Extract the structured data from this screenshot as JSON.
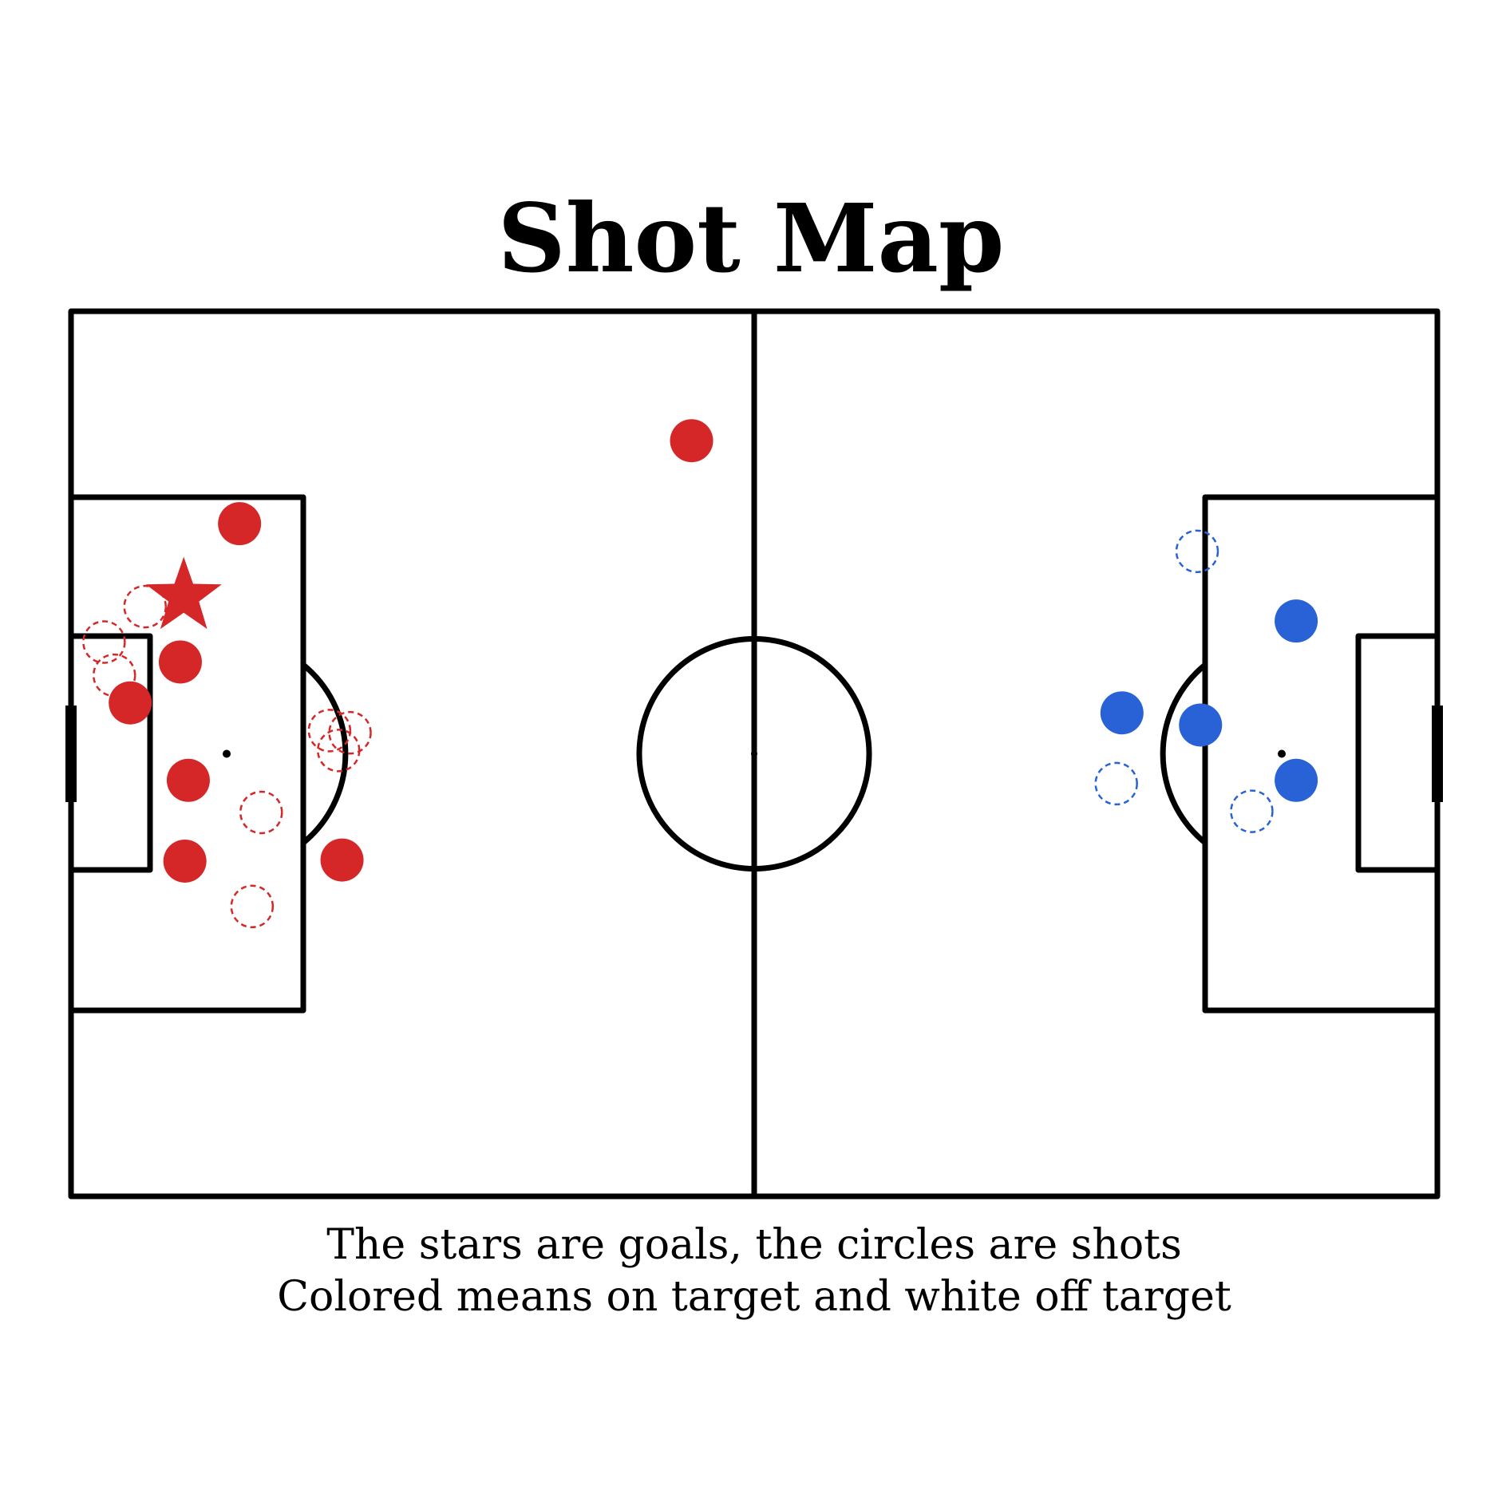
{
  "title": "Shot Map",
  "caption": {
    "line1": "The stars are goals, the circles are shots",
    "line2": "Colored means on target and white off target"
  },
  "colors": {
    "team_a": "#d62728",
    "team_b": "#2862d6",
    "lines": "#000000",
    "background": "#ffffff"
  },
  "chart_data": {
    "type": "scatter",
    "x_range": [
      0,
      120
    ],
    "y_range": [
      0,
      80
    ],
    "teams": [
      {
        "color": "#d62728",
        "shots": [
          {
            "x": 9.9,
            "y": 25.8,
            "outcome": "goal"
          },
          {
            "x": 9.6,
            "y": 31.7,
            "outcome": "on_target"
          },
          {
            "x": 14.8,
            "y": 19.2,
            "outcome": "on_target"
          },
          {
            "x": 5.2,
            "y": 35.4,
            "outcome": "on_target"
          },
          {
            "x": 10.3,
            "y": 42.4,
            "outcome": "on_target"
          },
          {
            "x": 10.0,
            "y": 49.7,
            "outcome": "on_target"
          },
          {
            "x": 23.8,
            "y": 49.6,
            "outcome": "on_target"
          },
          {
            "x": 54.5,
            "y": 11.7,
            "outcome": "on_target"
          },
          {
            "x": 6.5,
            "y": 26.7,
            "outcome": "off_target"
          },
          {
            "x": 2.9,
            "y": 29.9,
            "outcome": "off_target"
          },
          {
            "x": 3.8,
            "y": 32.9,
            "outcome": "off_target"
          },
          {
            "x": 22.7,
            "y": 37.9,
            "outcome": "off_target"
          },
          {
            "x": 24.5,
            "y": 38.1,
            "outcome": "off_target"
          },
          {
            "x": 23.5,
            "y": 39.7,
            "outcome": "off_target"
          },
          {
            "x": 16.7,
            "y": 45.3,
            "outcome": "off_target"
          },
          {
            "x": 15.9,
            "y": 53.8,
            "outcome": "off_target"
          }
        ]
      },
      {
        "color": "#2862d6",
        "shots": [
          {
            "x": 107.6,
            "y": 28.0,
            "outcome": "on_target"
          },
          {
            "x": 92.3,
            "y": 36.3,
            "outcome": "on_target"
          },
          {
            "x": 99.2,
            "y": 37.4,
            "outcome": "on_target"
          },
          {
            "x": 107.6,
            "y": 42.4,
            "outcome": "on_target"
          },
          {
            "x": 98.9,
            "y": 21.7,
            "outcome": "off_target"
          },
          {
            "x": 91.8,
            "y": 42.7,
            "outcome": "off_target"
          },
          {
            "x": 103.7,
            "y": 45.2,
            "outcome": "off_target"
          }
        ]
      }
    ]
  }
}
